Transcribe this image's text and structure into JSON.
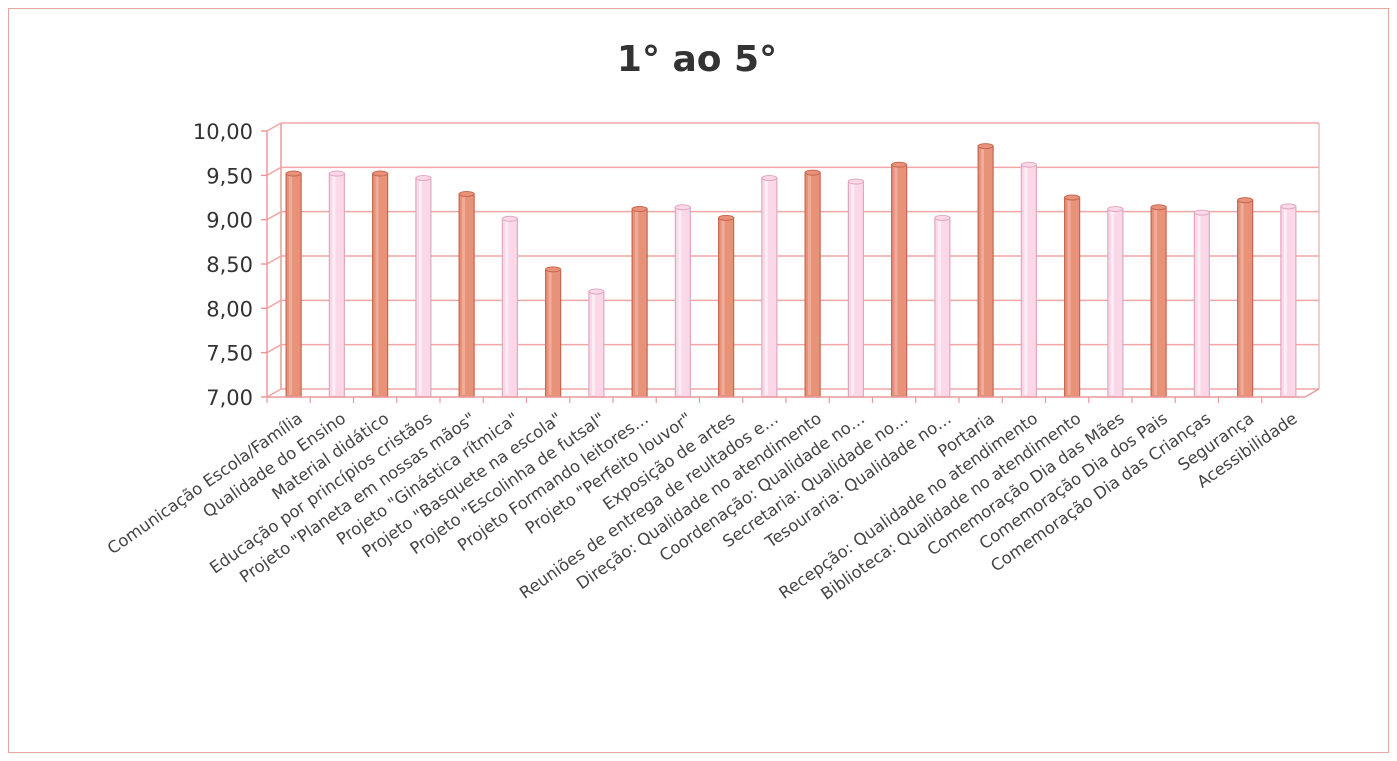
{
  "chart_data": {
    "type": "bar",
    "title": "1° ao 5°",
    "xlabel": "",
    "ylabel": "",
    "ylim": [
      7.0,
      10.0
    ],
    "yticks": [
      "7,00",
      "7,50",
      "8,00",
      "8,50",
      "9,00",
      "9,50",
      "10,00"
    ],
    "ytick_values": [
      7.0,
      7.5,
      8.0,
      8.5,
      9.0,
      9.5,
      10.0
    ],
    "grid": true,
    "legend": "none",
    "colors": {
      "bar_dark": "#e8927a",
      "bar_dark_edge": "#c8664f",
      "bar_light": "#fad8e8",
      "bar_light_edge": "#e0a8c0",
      "grid": "#f2a6a6",
      "axis": "#e89a9a"
    },
    "categories": [
      "Comunicação Escola/Família",
      "Qualidade do Ensino",
      "Material didático",
      "Educação por princípios cristãos",
      "Projeto \"Planeta em nossas mãos\"",
      "Projeto \"Ginástica rítmica\"",
      "Projeto \"Basquete na escola\"",
      "Projeto \"Escolinha de futsal\"",
      "Projeto Formando leitores…",
      "Projeto \"Perfeito louvor\"",
      "Exposição de artes",
      "Reuniões de entrega de reultados e…",
      "Direção: Qualidade no atendimento",
      "Coordenação: Qualidade no…",
      "Secretaria: Qualidade no…",
      "Tesouraria: Qualidade no…",
      "Portaria",
      "Recepção: Qualidade no atendimento",
      "Biblioteca: Qualidade no atendimento",
      "Comemoração Dia das Mães",
      "Comemoração Dia dos Pais",
      "Comemoração Dia das Crianças",
      "Segurança",
      "Acessibilidade"
    ],
    "values": [
      9.52,
      9.52,
      9.52,
      9.47,
      9.29,
      9.01,
      8.44,
      8.19,
      9.12,
      9.14,
      9.02,
      9.47,
      9.53,
      9.43,
      9.62,
      9.02,
      9.83,
      9.62,
      9.25,
      9.12,
      9.14,
      9.08,
      9.22,
      9.15
    ]
  }
}
